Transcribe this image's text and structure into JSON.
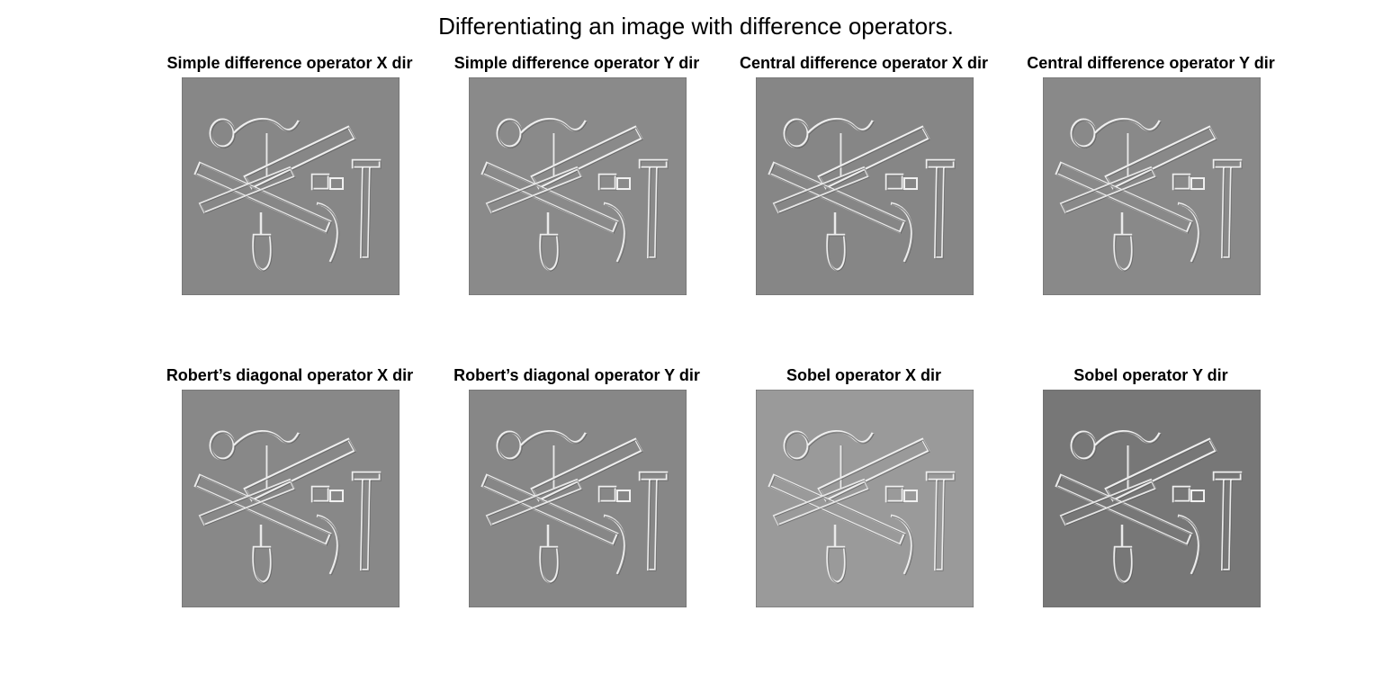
{
  "figure": {
    "title": "Differentiating an image with difference operators."
  },
  "panels": [
    {
      "title": "Simple difference operator X dir",
      "image": "embossed-tools-image",
      "background": "#878787"
    },
    {
      "title": "Simple difference operator Y dir",
      "image": "embossed-tools-image",
      "background": "#8a8a8a"
    },
    {
      "title": "Central difference operator X dir",
      "image": "embossed-tools-image",
      "background": "#868686"
    },
    {
      "title": "Central difference operator Y dir",
      "image": "embossed-tools-image",
      "background": "#898989"
    },
    {
      "title": "Robert’s diagonal operator X dir",
      "image": "embossed-tools-image",
      "background": "#888888"
    },
    {
      "title": "Robert’s diagonal operator Y dir",
      "image": "embossed-tools-image",
      "background": "#878787"
    },
    {
      "title": "Sobel operator X dir",
      "image": "embossed-tools-image",
      "background": "#9a9a9a"
    },
    {
      "title": "Sobel operator Y dir",
      "image": "embossed-tools-image",
      "background": "#777777"
    }
  ]
}
